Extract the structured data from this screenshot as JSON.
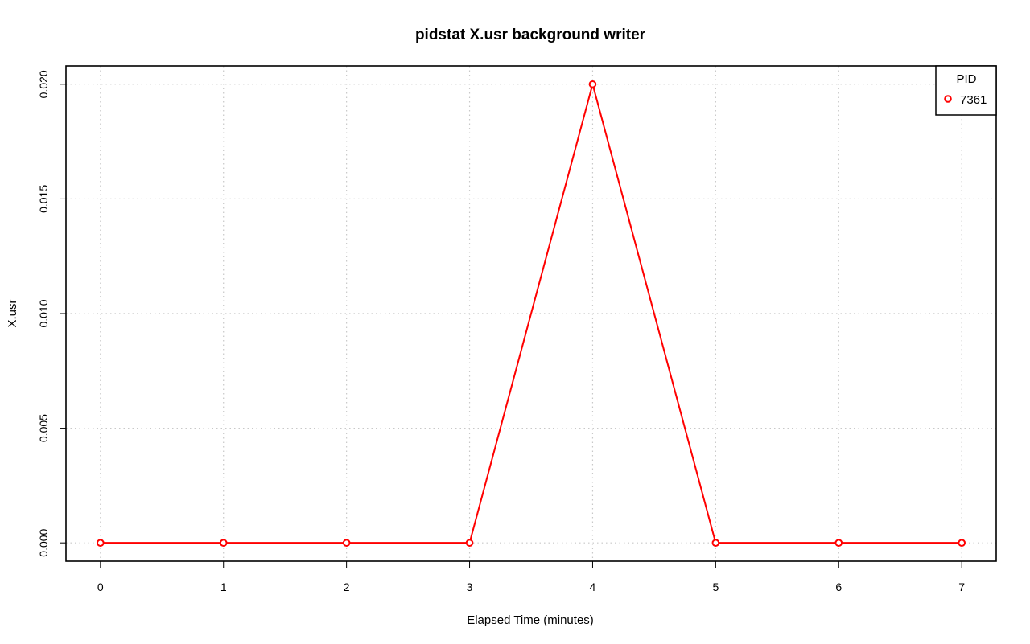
{
  "chart_data": {
    "type": "line",
    "title": "pidstat X.usr background writer",
    "xlabel": "Elapsed Time (minutes)",
    "ylabel": "X.usr",
    "x_ticks": [
      "0",
      "1",
      "2",
      "3",
      "4",
      "5",
      "6",
      "7"
    ],
    "y_ticks": [
      "0.000",
      "0.005",
      "0.010",
      "0.015",
      "0.020"
    ],
    "xlim": [
      -0.28,
      7.28
    ],
    "ylim": [
      -0.0008,
      0.0208
    ],
    "grid": true,
    "legend": {
      "title": "PID",
      "placement": "top-right"
    },
    "series": [
      {
        "name": "7361",
        "color": "#ff0000",
        "x": [
          0,
          1,
          2,
          3,
          4,
          5,
          6,
          7
        ],
        "y": [
          0,
          0,
          0,
          0,
          0.02,
          0,
          0,
          0
        ]
      }
    ]
  }
}
